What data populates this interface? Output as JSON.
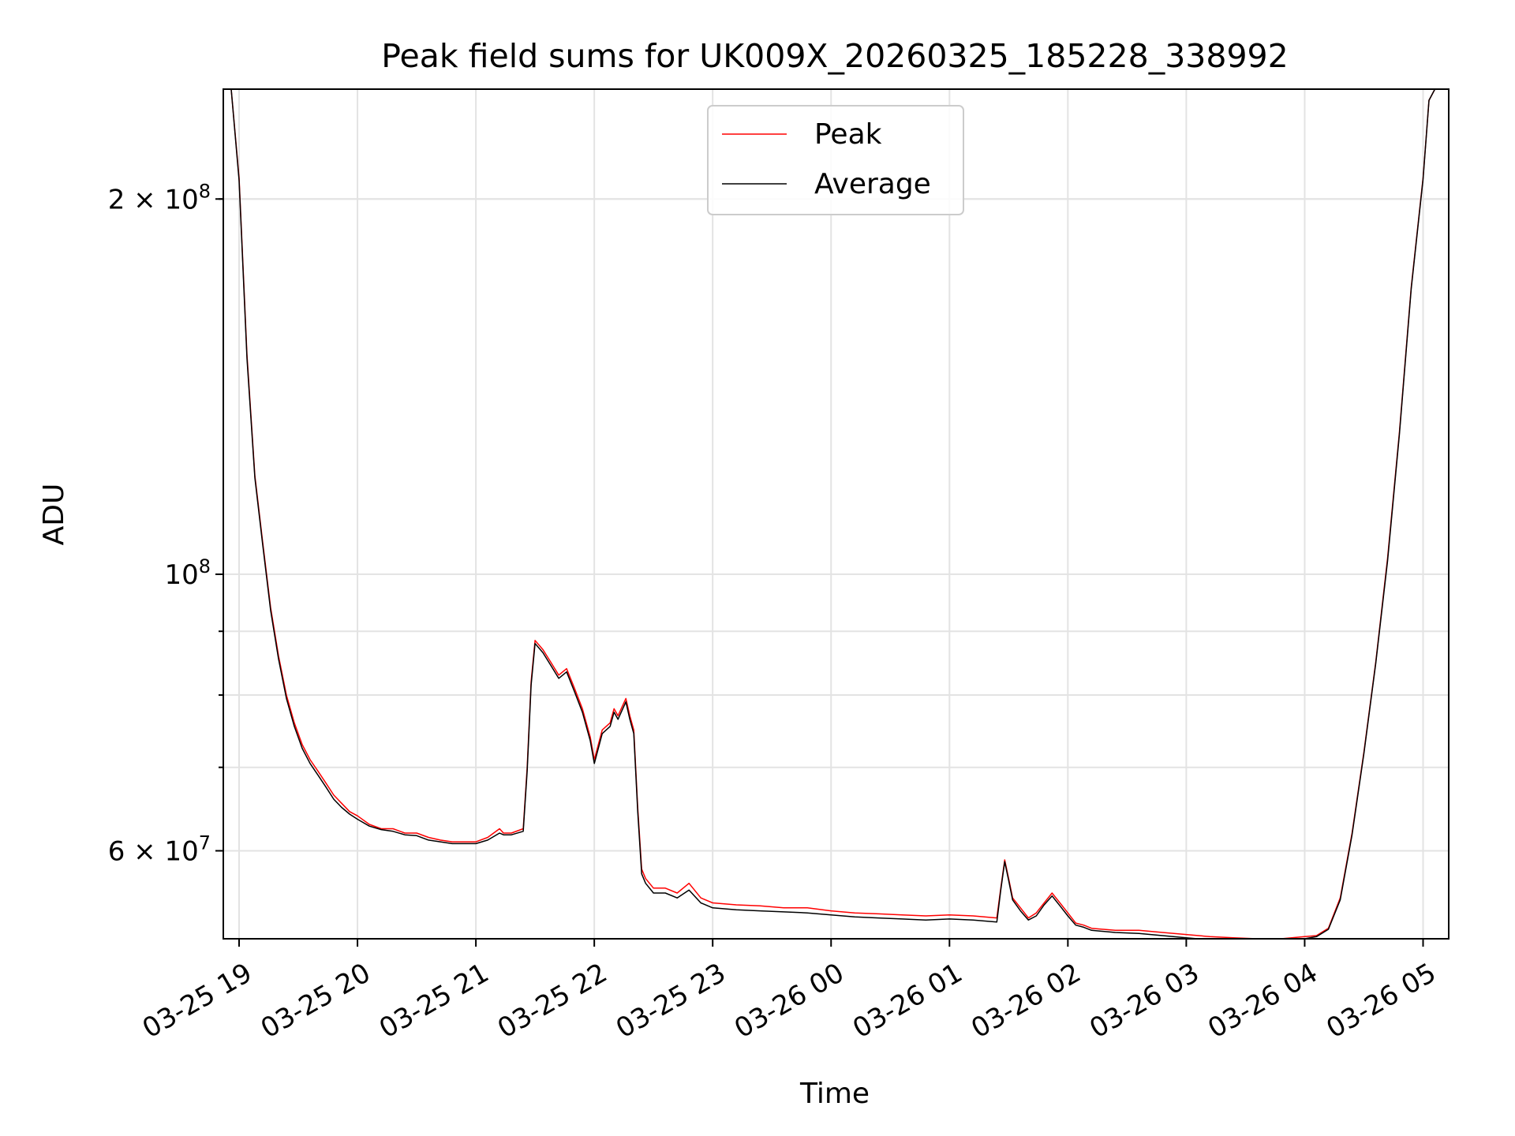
{
  "chart_data": {
    "type": "line",
    "title": "Peak field sums for UK009X_20260325_185228_338992",
    "xlabel": "Time",
    "ylabel": "ADU",
    "y_scale": "log",
    "ylim": [
      51000000,
      245000000
    ],
    "xlim": [
      "2026-03-25 18:52",
      "2026-03-26 05:13"
    ],
    "grid": true,
    "legend": "top-center",
    "x_ticks": [
      {
        "t": "2026-03-25 19:00",
        "label": "03-25 19"
      },
      {
        "t": "2026-03-25 20:00",
        "label": "03-25 20"
      },
      {
        "t": "2026-03-25 21:00",
        "label": "03-25 21"
      },
      {
        "t": "2026-03-25 22:00",
        "label": "03-25 22"
      },
      {
        "t": "2026-03-25 23:00",
        "label": "03-25 23"
      },
      {
        "t": "2026-03-26 00:00",
        "label": "03-26 00"
      },
      {
        "t": "2026-03-26 01:00",
        "label": "03-26 01"
      },
      {
        "t": "2026-03-26 02:00",
        "label": "03-26 02"
      },
      {
        "t": "2026-03-26 03:00",
        "label": "03-26 03"
      },
      {
        "t": "2026-03-26 04:00",
        "label": "03-26 04"
      },
      {
        "t": "2026-03-26 05:00",
        "label": "03-26 05"
      }
    ],
    "y_major_ticks": [
      {
        "v": 60000000,
        "base": "6 × 10",
        "exp": "7"
      },
      {
        "v": 100000000,
        "base": "10",
        "exp": "8"
      },
      {
        "v": 200000000,
        "base": "2 × 10",
        "exp": "8"
      }
    ],
    "y_minor_ticks": [
      60000000,
      70000000,
      80000000,
      90000000,
      200000000
    ],
    "series": [
      {
        "name": "Peak",
        "color": "#ff0000",
        "x": [
          "2026-03-25 18:52",
          "2026-03-25 18:56",
          "2026-03-25 19:00",
          "2026-03-25 19:04",
          "2026-03-25 19:08",
          "2026-03-25 19:12",
          "2026-03-25 19:16",
          "2026-03-25 19:20",
          "2026-03-25 19:24",
          "2026-03-25 19:28",
          "2026-03-25 19:32",
          "2026-03-25 19:36",
          "2026-03-25 19:40",
          "2026-03-25 19:44",
          "2026-03-25 19:48",
          "2026-03-25 19:52",
          "2026-03-25 19:56",
          "2026-03-25 20:00",
          "2026-03-25 20:06",
          "2026-03-25 20:12",
          "2026-03-25 20:18",
          "2026-03-25 20:24",
          "2026-03-25 20:30",
          "2026-03-25 20:36",
          "2026-03-25 20:42",
          "2026-03-25 20:48",
          "2026-03-25 20:54",
          "2026-03-25 21:00",
          "2026-03-25 21:06",
          "2026-03-25 21:12",
          "2026-03-25 21:14",
          "2026-03-25 21:18",
          "2026-03-25 21:24",
          "2026-03-25 21:26",
          "2026-03-25 21:28",
          "2026-03-25 21:30",
          "2026-03-25 21:34",
          "2026-03-25 21:38",
          "2026-03-25 21:42",
          "2026-03-25 21:46",
          "2026-03-25 21:50",
          "2026-03-25 21:54",
          "2026-03-25 21:58",
          "2026-03-25 22:00",
          "2026-03-25 22:04",
          "2026-03-25 22:08",
          "2026-03-25 22:10",
          "2026-03-25 22:12",
          "2026-03-25 22:16",
          "2026-03-25 22:18",
          "2026-03-25 22:20",
          "2026-03-25 22:22",
          "2026-03-25 22:24",
          "2026-03-25 22:26",
          "2026-03-25 22:30",
          "2026-03-25 22:36",
          "2026-03-25 22:42",
          "2026-03-25 22:48",
          "2026-03-25 22:54",
          "2026-03-25 23:00",
          "2026-03-25 23:12",
          "2026-03-25 23:24",
          "2026-03-25 23:36",
          "2026-03-25 23:48",
          "2026-03-26 00:00",
          "2026-03-26 00:12",
          "2026-03-26 00:24",
          "2026-03-26 00:36",
          "2026-03-26 00:48",
          "2026-03-26 01:00",
          "2026-03-26 01:12",
          "2026-03-26 01:24",
          "2026-03-26 01:26",
          "2026-03-26 01:28",
          "2026-03-26 01:30",
          "2026-03-26 01:32",
          "2026-03-26 01:36",
          "2026-03-26 01:40",
          "2026-03-26 01:44",
          "2026-03-26 01:48",
          "2026-03-26 01:52",
          "2026-03-26 01:56",
          "2026-03-26 02:00",
          "2026-03-26 02:04",
          "2026-03-26 02:08",
          "2026-03-26 02:12",
          "2026-03-26 02:24",
          "2026-03-26 02:36",
          "2026-03-26 02:48",
          "2026-03-26 03:00",
          "2026-03-26 03:12",
          "2026-03-26 03:24",
          "2026-03-26 03:36",
          "2026-03-26 03:48",
          "2026-03-26 04:00",
          "2026-03-26 04:06",
          "2026-03-26 04:12",
          "2026-03-26 04:18",
          "2026-03-26 04:24",
          "2026-03-26 04:30",
          "2026-03-26 04:36",
          "2026-03-26 04:42",
          "2026-03-26 04:48",
          "2026-03-26 04:54",
          "2026-03-26 05:00",
          "2026-03-26 05:03",
          "2026-03-26 05:06"
        ],
        "values": [
          245000000,
          245000000,
          208000000,
          150000000,
          120000000,
          106000000,
          94000000,
          86000000,
          80000000,
          76000000,
          73000000,
          71000000,
          69500000,
          68000000,
          66500000,
          65500000,
          64500000,
          64000000,
          63000000,
          62500000,
          62500000,
          62000000,
          62000000,
          61500000,
          61200000,
          61000000,
          61000000,
          61000000,
          61500000,
          62500000,
          62000000,
          62000000,
          62500000,
          70000000,
          82000000,
          88500000,
          87000000,
          85000000,
          83000000,
          84000000,
          81000000,
          78000000,
          74000000,
          71000000,
          75000000,
          76000000,
          78000000,
          77000000,
          79500000,
          77000000,
          75000000,
          65000000,
          58000000,
          57000000,
          56000000,
          56000000,
          55500000,
          56500000,
          55000000,
          54500000,
          54300000,
          54200000,
          54000000,
          54000000,
          53700000,
          53500000,
          53400000,
          53300000,
          53200000,
          53300000,
          53200000,
          53000000,
          56000000,
          59000000,
          57000000,
          55000000,
          54000000,
          53000000,
          53500000,
          54500000,
          55500000,
          54500000,
          53500000,
          52500000,
          52300000,
          52000000,
          51800000,
          51800000,
          51600000,
          51400000,
          51200000,
          51100000,
          51000000,
          51000000,
          51200000,
          51300000,
          52000000,
          55000000,
          62000000,
          72000000,
          85000000,
          103000000,
          130000000,
          170000000,
          208000000,
          240000000,
          245000000
        ]
      },
      {
        "name": "Average",
        "color": "#000000",
        "x": [
          "2026-03-25 18:52",
          "2026-03-25 18:56",
          "2026-03-25 19:00",
          "2026-03-25 19:04",
          "2026-03-25 19:08",
          "2026-03-25 19:12",
          "2026-03-25 19:16",
          "2026-03-25 19:20",
          "2026-03-25 19:24",
          "2026-03-25 19:28",
          "2026-03-25 19:32",
          "2026-03-25 19:36",
          "2026-03-25 19:40",
          "2026-03-25 19:44",
          "2026-03-25 19:48",
          "2026-03-25 19:52",
          "2026-03-25 19:56",
          "2026-03-25 20:00",
          "2026-03-25 20:06",
          "2026-03-25 20:12",
          "2026-03-25 20:18",
          "2026-03-25 20:24",
          "2026-03-25 20:30",
          "2026-03-25 20:36",
          "2026-03-25 20:42",
          "2026-03-25 20:48",
          "2026-03-25 20:54",
          "2026-03-25 21:00",
          "2026-03-25 21:06",
          "2026-03-25 21:12",
          "2026-03-25 21:14",
          "2026-03-25 21:18",
          "2026-03-25 21:24",
          "2026-03-25 21:26",
          "2026-03-25 21:28",
          "2026-03-25 21:30",
          "2026-03-25 21:34",
          "2026-03-25 21:38",
          "2026-03-25 21:42",
          "2026-03-25 21:46",
          "2026-03-25 21:50",
          "2026-03-25 21:54",
          "2026-03-25 21:58",
          "2026-03-25 22:00",
          "2026-03-25 22:04",
          "2026-03-25 22:08",
          "2026-03-25 22:10",
          "2026-03-25 22:12",
          "2026-03-25 22:16",
          "2026-03-25 22:18",
          "2026-03-25 22:20",
          "2026-03-25 22:22",
          "2026-03-25 22:24",
          "2026-03-25 22:26",
          "2026-03-25 22:30",
          "2026-03-25 22:36",
          "2026-03-25 22:42",
          "2026-03-25 22:48",
          "2026-03-25 22:54",
          "2026-03-25 23:00",
          "2026-03-25 23:12",
          "2026-03-25 23:24",
          "2026-03-25 23:36",
          "2026-03-25 23:48",
          "2026-03-26 00:00",
          "2026-03-26 00:12",
          "2026-03-26 00:24",
          "2026-03-26 00:36",
          "2026-03-26 00:48",
          "2026-03-26 01:00",
          "2026-03-26 01:12",
          "2026-03-26 01:24",
          "2026-03-26 01:26",
          "2026-03-26 01:28",
          "2026-03-26 01:30",
          "2026-03-26 01:32",
          "2026-03-26 01:36",
          "2026-03-26 01:40",
          "2026-03-26 01:44",
          "2026-03-26 01:48",
          "2026-03-26 01:52",
          "2026-03-26 01:56",
          "2026-03-26 02:00",
          "2026-03-26 02:04",
          "2026-03-26 02:08",
          "2026-03-26 02:12",
          "2026-03-26 02:24",
          "2026-03-26 02:36",
          "2026-03-26 02:48",
          "2026-03-26 03:00",
          "2026-03-26 03:12",
          "2026-03-26 03:24",
          "2026-03-26 03:36",
          "2026-03-26 03:48",
          "2026-03-26 04:00",
          "2026-03-26 04:06",
          "2026-03-26 04:12",
          "2026-03-26 04:18",
          "2026-03-26 04:24",
          "2026-03-26 04:30",
          "2026-03-26 04:36",
          "2026-03-26 04:42",
          "2026-03-26 04:48",
          "2026-03-26 04:54",
          "2026-03-26 05:00",
          "2026-03-26 05:03",
          "2026-03-26 05:06"
        ],
        "values": [
          245000000,
          245000000,
          207000000,
          149000000,
          119500000,
          105500000,
          93500000,
          85500000,
          79500000,
          75500000,
          72500000,
          70500000,
          69000000,
          67500000,
          66000000,
          65000000,
          64200000,
          63600000,
          62800000,
          62400000,
          62200000,
          61800000,
          61700000,
          61200000,
          61000000,
          60800000,
          60800000,
          60800000,
          61200000,
          62000000,
          61800000,
          61800000,
          62200000,
          69500000,
          81500000,
          88000000,
          86500000,
          84500000,
          82500000,
          83500000,
          80500000,
          77500000,
          73500000,
          70500000,
          74500000,
          75500000,
          77500000,
          76500000,
          79000000,
          76500000,
          74500000,
          64500000,
          57500000,
          56500000,
          55500000,
          55500000,
          55000000,
          55800000,
          54500000,
          54000000,
          53800000,
          53700000,
          53600000,
          53500000,
          53300000,
          53100000,
          53000000,
          52900000,
          52800000,
          52900000,
          52800000,
          52600000,
          55800000,
          58800000,
          56800000,
          54800000,
          53700000,
          52800000,
          53200000,
          54300000,
          55200000,
          54200000,
          53200000,
          52300000,
          52100000,
          51800000,
          51600000,
          51500000,
          51300000,
          51100000,
          50900000,
          50800000,
          50800000,
          50800000,
          51000000,
          51200000,
          51900000,
          54800000,
          61800000,
          71800000,
          84800000,
          102500000,
          129500000,
          169500000,
          207500000,
          240000000,
          245000000
        ]
      }
    ]
  }
}
